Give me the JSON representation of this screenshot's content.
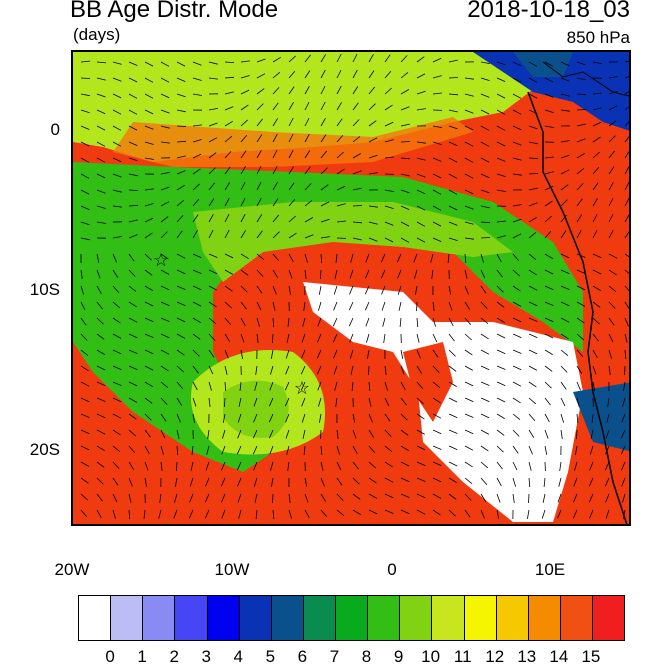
{
  "header": {
    "title": "BB Age Distr. Mode",
    "date": "2018-10-18_03",
    "units": "(days)",
    "level": "850 hPa"
  },
  "axes": {
    "lat_labels": [
      "0",
      "10S",
      "20S"
    ],
    "lon_labels": [
      "20W",
      "10W",
      "0",
      "10E"
    ]
  },
  "colorbar": {
    "labels": [
      "0",
      "1",
      "2",
      "3",
      "4",
      "5",
      "6",
      "7",
      "8",
      "9",
      "10",
      "11",
      "12",
      "13",
      "14",
      "15"
    ],
    "colors": [
      "#ffffff",
      "#bdbdf5",
      "#8a8af5",
      "#4646f5",
      "#0000f0",
      "#0a32b4",
      "#0a508c",
      "#0a8c50",
      "#0aaa1e",
      "#32be14",
      "#82d214",
      "#c8e61e",
      "#f5f500",
      "#f5c800",
      "#f58c00",
      "#f05014",
      "#f01e1e"
    ]
  },
  "map": {
    "markers": [
      "star-marker",
      "star-marker"
    ],
    "field_colors": {
      "red": "#f03a10",
      "orange": "#f5780a",
      "yellow_green": "#b4e61e",
      "light_green": "#82d214",
      "green": "#32be14",
      "white": "#ffffff",
      "dark_blue": "#0a32b4",
      "teal": "#0a508c"
    }
  }
}
